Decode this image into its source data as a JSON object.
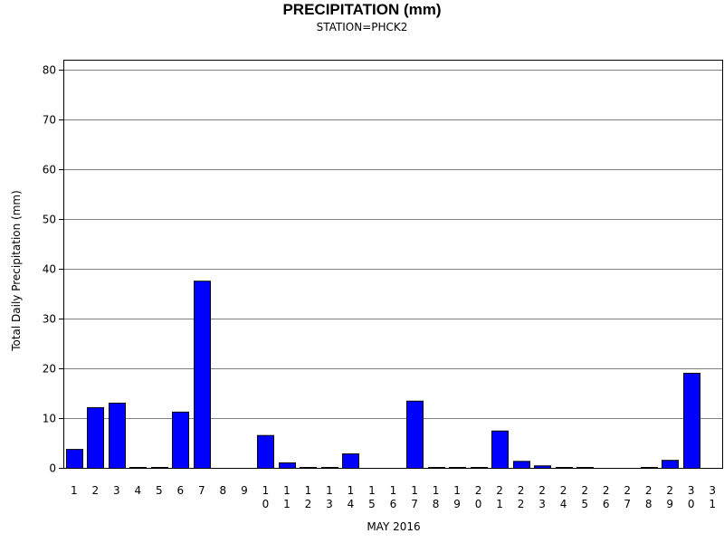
{
  "chart_data": {
    "type": "bar",
    "title": "PRECIPITATION (mm)",
    "subtitle": "STATION=PHCK2",
    "xlabel": "MAY 2016",
    "ylabel": "Total Daily Precipitation (mm)",
    "categories": [
      "1",
      "2",
      "3",
      "4",
      "5",
      "6",
      "7",
      "8",
      "9",
      "10",
      "11",
      "12",
      "13",
      "14",
      "15",
      "16",
      "17",
      "18",
      "19",
      "20",
      "21",
      "22",
      "23",
      "24",
      "25",
      "26",
      "27",
      "28",
      "29",
      "30",
      "31"
    ],
    "values": [
      3.8,
      12.2,
      13.1,
      0.1,
      0.1,
      11.3,
      37.6,
      null,
      null,
      6.6,
      1.1,
      0.1,
      0.1,
      2.9,
      null,
      null,
      13.5,
      0.1,
      0.1,
      0.1,
      7.5,
      1.4,
      0.5,
      0.1,
      0.1,
      null,
      null,
      0.1,
      1.6,
      19.1,
      null
    ],
    "ylim": [
      0,
      80
    ],
    "yticks": [
      0,
      10,
      20,
      30,
      40,
      50,
      60,
      70,
      80
    ],
    "grid": true,
    "colors": {
      "bar_fill": "#0000ff",
      "bar_stroke": "#000000",
      "grid": "#808080",
      "axis": "#000000"
    }
  }
}
